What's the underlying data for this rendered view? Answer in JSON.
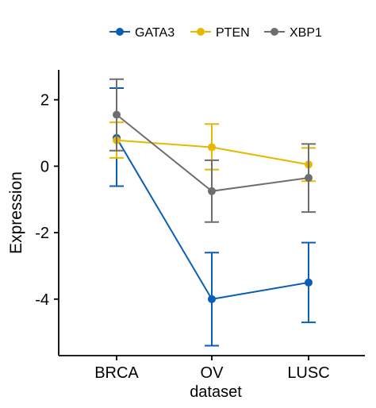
{
  "chart_data": {
    "type": "line",
    "title": "",
    "xlabel": "dataset",
    "ylabel": "Expression",
    "categories": [
      "BRCA",
      "OV",
      "LUSC"
    ],
    "ylim": [
      -5.7,
      2.9
    ],
    "yticks": [
      2,
      0,
      -2,
      -4
    ],
    "ytick_labels": [
      "2",
      "0",
      "-2",
      "-4"
    ],
    "grid": false,
    "legend_position": "top",
    "series": [
      {
        "name": "GATA3",
        "color": "#0a5fb4",
        "values": [
          0.85,
          -4.0,
          -3.5
        ],
        "error_low": [
          -0.6,
          -5.4,
          -4.7
        ],
        "error_high": [
          2.35,
          -2.6,
          -2.3
        ]
      },
      {
        "name": "PTEN",
        "color": "#e7b800",
        "values": [
          0.78,
          0.57,
          0.05
        ],
        "error_low": [
          0.25,
          -0.1,
          -0.45
        ],
        "error_high": [
          1.32,
          1.27,
          0.55
        ]
      },
      {
        "name": "XBP1",
        "color": "#6e6e6e",
        "values": [
          1.55,
          -0.75,
          -0.35
        ],
        "error_low": [
          0.47,
          -1.68,
          -1.38
        ],
        "error_high": [
          2.62,
          0.18,
          0.67
        ]
      }
    ]
  }
}
